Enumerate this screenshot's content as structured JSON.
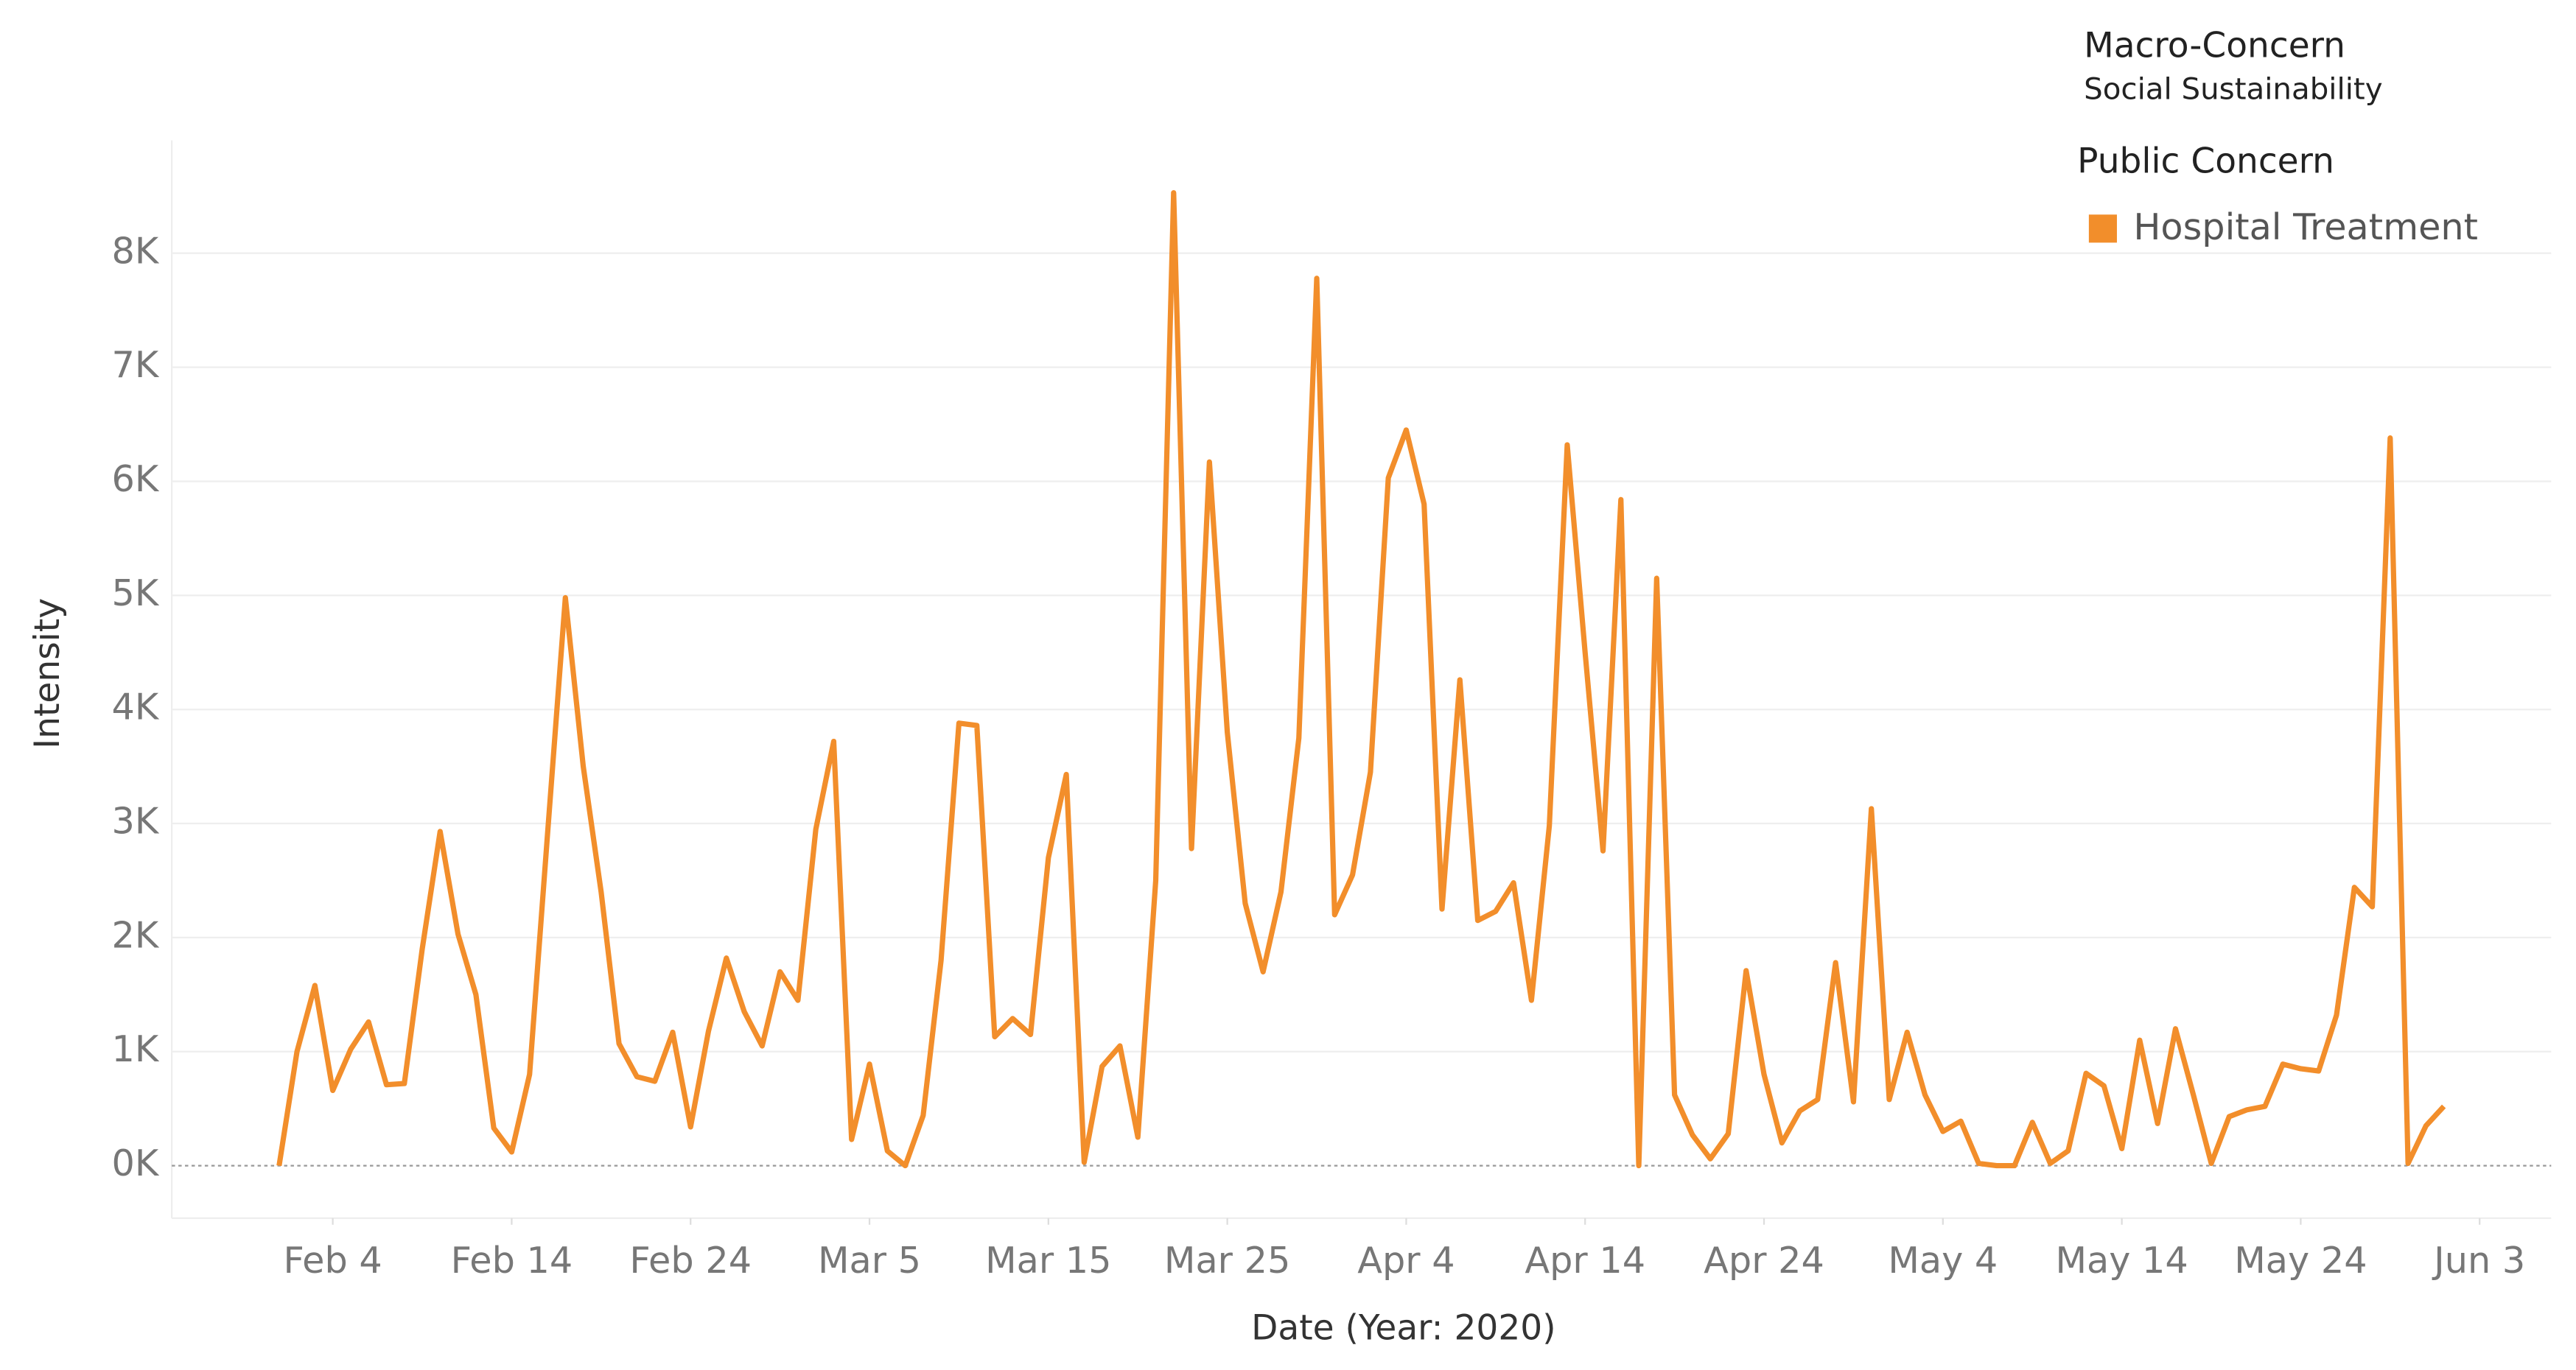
{
  "chart_data": {
    "type": "line",
    "title": "Macro-Concern",
    "subtitle": "Social Sustainability",
    "legend_title": "Public Concern",
    "x_label": "Date (Year: 2020)",
    "y_label": "Intensity",
    "grid": true,
    "legend_position": "top-right",
    "x": [
      "2020-02-01",
      "2020-02-02",
      "2020-02-03",
      "2020-02-04",
      "2020-02-05",
      "2020-02-06",
      "2020-02-07",
      "2020-02-08",
      "2020-02-09",
      "2020-02-10",
      "2020-02-11",
      "2020-02-12",
      "2020-02-13",
      "2020-02-14",
      "2020-02-15",
      "2020-02-16",
      "2020-02-17",
      "2020-02-18",
      "2020-02-19",
      "2020-02-20",
      "2020-02-21",
      "2020-02-22",
      "2020-02-23",
      "2020-02-24",
      "2020-02-25",
      "2020-02-26",
      "2020-02-27",
      "2020-02-28",
      "2020-02-29",
      "2020-03-01",
      "2020-03-02",
      "2020-03-03",
      "2020-03-04",
      "2020-03-05",
      "2020-03-06",
      "2020-03-07",
      "2020-03-08",
      "2020-03-09",
      "2020-03-10",
      "2020-03-11",
      "2020-03-12",
      "2020-03-13",
      "2020-03-14",
      "2020-03-15",
      "2020-03-16",
      "2020-03-17",
      "2020-03-18",
      "2020-03-19",
      "2020-03-20",
      "2020-03-21",
      "2020-03-22",
      "2020-03-23",
      "2020-03-24",
      "2020-03-25",
      "2020-03-26",
      "2020-03-27",
      "2020-03-28",
      "2020-03-29",
      "2020-03-30",
      "2020-03-31",
      "2020-04-01",
      "2020-04-02",
      "2020-04-03",
      "2020-04-04",
      "2020-04-05",
      "2020-04-06",
      "2020-04-07",
      "2020-04-08",
      "2020-04-09",
      "2020-04-10",
      "2020-04-11",
      "2020-04-12",
      "2020-04-13",
      "2020-04-14",
      "2020-04-15",
      "2020-04-16",
      "2020-04-17",
      "2020-04-18",
      "2020-04-19",
      "2020-04-20",
      "2020-04-21",
      "2020-04-22",
      "2020-04-23",
      "2020-04-24",
      "2020-04-25",
      "2020-04-26",
      "2020-04-27",
      "2020-04-28",
      "2020-04-29",
      "2020-04-30",
      "2020-05-01",
      "2020-05-02",
      "2020-05-03",
      "2020-05-04",
      "2020-05-05",
      "2020-05-06",
      "2020-05-07",
      "2020-05-08",
      "2020-05-09",
      "2020-05-10",
      "2020-05-11",
      "2020-05-12",
      "2020-05-13",
      "2020-05-14",
      "2020-05-15",
      "2020-05-16",
      "2020-05-17",
      "2020-05-18",
      "2020-05-19",
      "2020-05-20",
      "2020-05-21",
      "2020-05-22",
      "2020-05-23",
      "2020-05-24",
      "2020-05-25",
      "2020-05-26",
      "2020-05-27",
      "2020-05-28",
      "2020-05-29",
      "2020-05-30",
      "2020-05-31",
      "2020-06-01"
    ],
    "series": [
      {
        "name": "Hospital Treatment",
        "color": "#f28e2b",
        "values": [
          0,
          1000,
          1580,
          660,
          1020,
          1260,
          710,
          720,
          1900,
          2930,
          2030,
          1500,
          330,
          120,
          800,
          2900,
          4980,
          3500,
          2400,
          1070,
          780,
          740,
          1170,
          340,
          1180,
          1820,
          1350,
          1050,
          1700,
          1450,
          2950,
          3720,
          230,
          890,
          130,
          0,
          440,
          1800,
          3880,
          3860,
          1130,
          1290,
          1150,
          2700,
          3430,
          30,
          870,
          1050,
          250,
          2500,
          8530,
          2780,
          6170,
          3800,
          2300,
          1700,
          2400,
          3750,
          7780,
          2200,
          2550,
          3450,
          6030,
          6450,
          5800,
          2250,
          4260,
          2150,
          2230,
          2480,
          1450,
          2980,
          6320,
          4500,
          2760,
          5840,
          0,
          5150,
          620,
          270,
          60,
          280,
          1710,
          800,
          200,
          480,
          580,
          1780,
          560,
          3130,
          580,
          1170,
          620,
          300,
          390,
          20,
          0,
          0,
          380,
          20,
          130,
          810,
          700,
          150,
          1100,
          370,
          1200,
          620,
          20,
          430,
          490,
          520,
          890,
          850,
          830,
          1320,
          2440,
          2270,
          6380,
          20,
          350,
          520
        ]
      }
    ],
    "xlim": [
      "2020-01-26",
      "2020-06-07"
    ],
    "xticks": [
      {
        "value": "2020-02-04",
        "label": "Feb 4"
      },
      {
        "value": "2020-02-14",
        "label": "Feb 14"
      },
      {
        "value": "2020-02-24",
        "label": "Feb 24"
      },
      {
        "value": "2020-03-05",
        "label": "Mar 5"
      },
      {
        "value": "2020-03-15",
        "label": "Mar 15"
      },
      {
        "value": "2020-03-25",
        "label": "Mar 25"
      },
      {
        "value": "2020-04-04",
        "label": "Apr 4"
      },
      {
        "value": "2020-04-14",
        "label": "Apr 14"
      },
      {
        "value": "2020-04-24",
        "label": "Apr 24"
      },
      {
        "value": "2020-05-04",
        "label": "May 4"
      },
      {
        "value": "2020-05-14",
        "label": "May 14"
      },
      {
        "value": "2020-05-24",
        "label": "May 24"
      },
      {
        "value": "2020-06-03",
        "label": "Jun 3"
      }
    ],
    "ylim": [
      -460,
      8990
    ],
    "yticks": [
      {
        "value": 0,
        "label": "0K"
      },
      {
        "value": 1000,
        "label": "1K"
      },
      {
        "value": 2000,
        "label": "2K"
      },
      {
        "value": 3000,
        "label": "3K"
      },
      {
        "value": 4000,
        "label": "4K"
      },
      {
        "value": 5000,
        "label": "5K"
      },
      {
        "value": 6000,
        "label": "6K"
      },
      {
        "value": 7000,
        "label": "7K"
      },
      {
        "value": 8000,
        "label": "8K"
      }
    ]
  }
}
